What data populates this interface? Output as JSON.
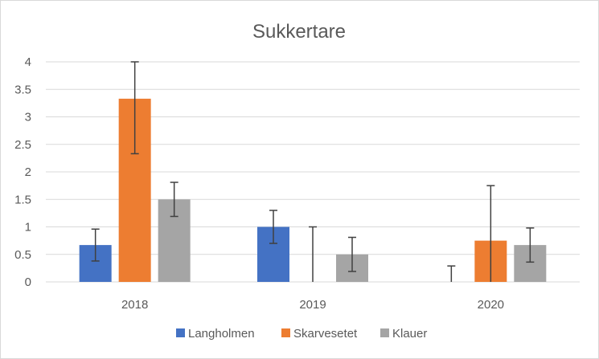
{
  "chart_data": {
    "type": "bar",
    "title": "Sukkertare",
    "xlabel": "",
    "ylabel": "",
    "categories": [
      "2018",
      "2019",
      "2020"
    ],
    "ylim": [
      0,
      4
    ],
    "yticks": [
      "0",
      "0.5",
      "1",
      "1.5",
      "2",
      "2.5",
      "3",
      "3.5",
      "4"
    ],
    "grid": true,
    "legend_position": "bottom",
    "series": [
      {
        "name": "Langholmen",
        "color": "#4472c4",
        "values": [
          0.67,
          1.0,
          0
        ],
        "errors": [
          0.29,
          0.3,
          0.29
        ]
      },
      {
        "name": "Skarvesetet",
        "color": "#ed7d31",
        "values": [
          3.33,
          0,
          0.75
        ],
        "errors": [
          1.0,
          1.0,
          1.0
        ]
      },
      {
        "name": "Klauer",
        "color": "#a5a5a5",
        "values": [
          1.5,
          0.5,
          0.67
        ],
        "errors": [
          0.31,
          0.31,
          0.31
        ]
      }
    ]
  }
}
